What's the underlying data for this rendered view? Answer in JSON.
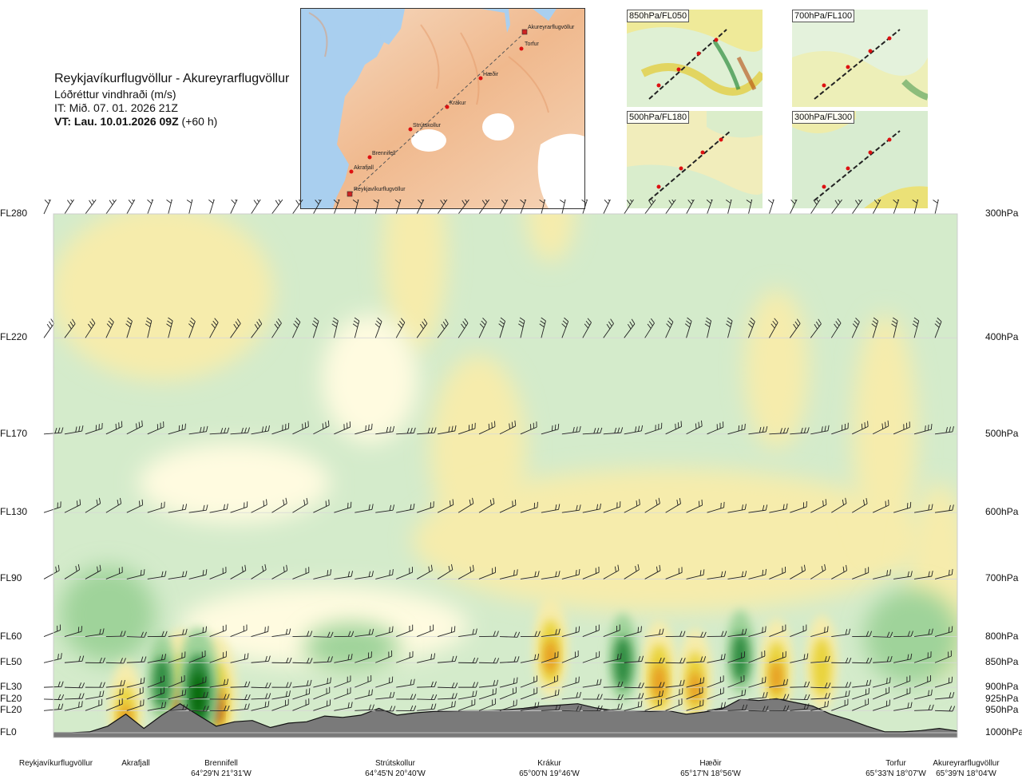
{
  "header": {
    "title": "Reykjavíkurflugvöllur - Akureyrarflugvöllur",
    "subtitle": "Lóðréttur vindhraði (m/s)",
    "it": "IT: Mið. 07. 01. 2026 21Z",
    "vt_bold": "VT: Lau. 10.01.2026 09Z",
    "vt_rest": " (+60 h)"
  },
  "map": {
    "labels": [
      "Akureyrarflugvöllur",
      "Torfur",
      "Hæðir",
      "Krákur",
      "Strútskollur",
      "Brennifell",
      "Akrafjall",
      "Reykjavíkurflugvöllur"
    ]
  },
  "insets": [
    {
      "label": "850hPa/FL050"
    },
    {
      "label": "700hPa/FL100"
    },
    {
      "label": "500hPa/FL180"
    },
    {
      "label": "300hPa/FL300"
    }
  ],
  "chart_data": {
    "type": "heatmap",
    "title": "Lóðréttur vindhraði (m/s)",
    "left_axis_labels": [
      "FL280",
      "FL220",
      "FL170",
      "FL130",
      "FL90",
      "FL60",
      "FL50",
      "FL30",
      "FL20",
      "FL20",
      "FL0"
    ],
    "right_axis_labels": [
      "300hPa",
      "400hPa",
      "500hPa",
      "600hPa",
      "700hPa",
      "800hPa",
      "850hPa",
      "900hPa",
      "925hPa",
      "950hPa",
      "1000hPa"
    ],
    "pressure_levels_hpa": [
      300,
      400,
      500,
      600,
      700,
      800,
      850,
      900,
      925,
      950,
      1000
    ],
    "waypoints": [
      {
        "name": "Reykjavíkurflugvöllur",
        "coord": ""
      },
      {
        "name": "Akrafjall",
        "coord": ""
      },
      {
        "name": "Brennifell",
        "coord": "64°29'N 21°31'W"
      },
      {
        "name": "Strútskollur",
        "coord": "64°45'N 20°40'W"
      },
      {
        "name": "Krákur",
        "coord": "65°00'N 19°46'W"
      },
      {
        "name": "Hæðir",
        "coord": "65°17'N 18°56'W"
      },
      {
        "name": "Torfur",
        "coord": "65°33'N 18°07'W"
      },
      {
        "name": "Akureyrarflugvöllur",
        "coord": "65°39'N 18°04'W"
      }
    ],
    "terrain_profile_hpa": [
      1000,
      1000,
      998,
      985,
      958,
      990,
      960,
      935,
      960,
      985,
      975,
      972,
      988,
      978,
      975,
      962,
      965,
      960,
      945,
      960,
      955,
      952,
      951,
      950,
      950,
      948,
      945,
      940,
      938,
      935,
      944,
      950,
      950,
      952,
      950,
      958,
      953,
      946,
      925,
      928,
      924,
      932,
      940,
      958,
      970,
      985,
      998,
      998,
      995,
      990,
      996
    ],
    "updraft_cells": [
      {
        "x_frac": 0.08,
        "p": 950,
        "w": 0.6
      },
      {
        "x_frac": 0.14,
        "p": 910,
        "w": 1.4
      },
      {
        "x_frac": 0.18,
        "p": 915,
        "w": 1.2
      },
      {
        "x_frac": 0.55,
        "p": 820,
        "w": 0.7
      },
      {
        "x_frac": 0.67,
        "p": 870,
        "w": 0.8
      },
      {
        "x_frac": 0.71,
        "p": 880,
        "w": 0.6
      },
      {
        "x_frac": 0.8,
        "p": 860,
        "w": 0.6
      },
      {
        "x_frac": 0.85,
        "p": 850,
        "w": 0.5
      }
    ],
    "downdraft_cells": [
      {
        "x_frac": 0.16,
        "p": 900,
        "w": -1.5
      },
      {
        "x_frac": 0.12,
        "p": 880,
        "w": -0.5
      },
      {
        "x_frac": 0.63,
        "p": 840,
        "w": -0.5
      },
      {
        "x_frac": 0.76,
        "p": 830,
        "w": -0.4
      }
    ],
    "wind_barb_levels_hpa": [
      300,
      400,
      500,
      600,
      700,
      800,
      850,
      900,
      925,
      950
    ],
    "colors": {
      "strong_down": "#006400",
      "down": "#2e8b3f",
      "weak_down": "#9fd39a",
      "very_weak_down": "#cfe9cc",
      "near_zero_neg": "#eef7e8",
      "near_zero_pos": "#fffbe0",
      "weak_up": "#f6ecac",
      "up": "#e9d33b",
      "strong_up": "#e79a20",
      "very_strong_up": "#b44a0b",
      "terrain": "#7a7a7a"
    }
  }
}
